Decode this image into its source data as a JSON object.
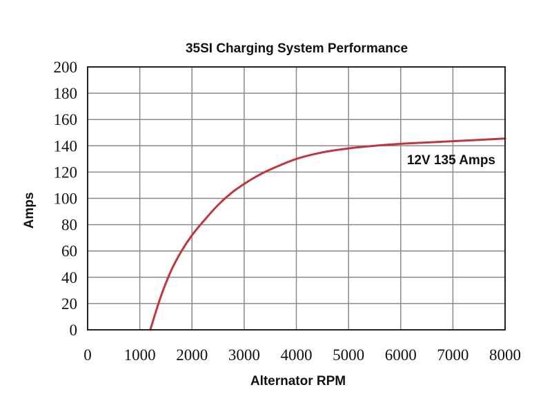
{
  "chart_data": {
    "type": "line",
    "title": "35SI Charging System Performance",
    "xlabel": "Alternator RPM",
    "ylabel": "Amps",
    "xlim": [
      0,
      8000
    ],
    "ylim": [
      0,
      200
    ],
    "x_ticks": [
      "0",
      "1000",
      "2000",
      "3000",
      "4000",
      "5000",
      "6000",
      "7000",
      "8000"
    ],
    "y_ticks": [
      "0",
      "20",
      "40",
      "60",
      "80",
      "100",
      "120",
      "140",
      "160",
      "180",
      "200"
    ],
    "grid": true,
    "series_color": "#c0353f",
    "annotation": "12V 135 Amps",
    "series": [
      {
        "x": [
          1200,
          1400,
          1600,
          1800,
          2000,
          2250,
          2500,
          2750,
          3000,
          3250,
          3500,
          4000,
          4500,
          5000,
          5500,
          6000,
          6500,
          7000,
          7500,
          8000
        ],
        "y": [
          0,
          25,
          45,
          60,
          72,
          84,
          95,
          104,
          111,
          117,
          122,
          130,
          135,
          138,
          140,
          141.5,
          142.5,
          143.5,
          144.5,
          145.5
        ]
      }
    ]
  }
}
